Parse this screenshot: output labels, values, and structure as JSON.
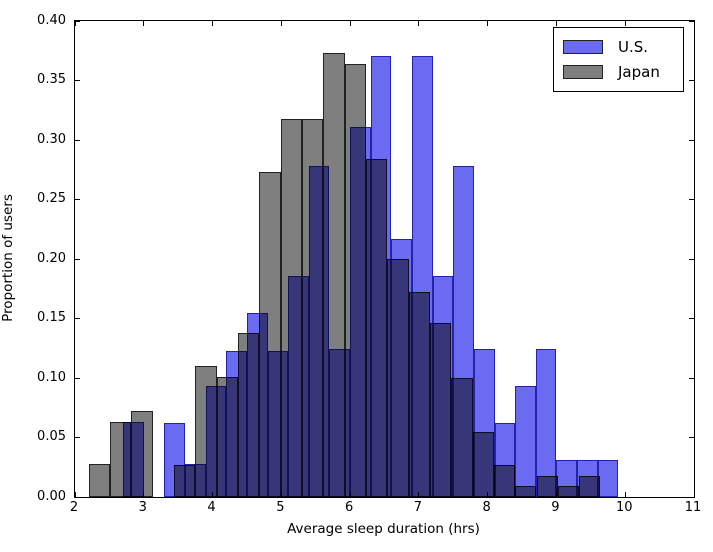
{
  "figure": {
    "background": "#ffffff"
  },
  "chart_data": {
    "type": "histogram-overlay",
    "title": "",
    "xlabel": "Average sleep duration (hrs)",
    "ylabel": "Proportion of users",
    "xlim": [
      2,
      11
    ],
    "ylim": [
      0,
      0.4
    ],
    "xticks": [
      2,
      3,
      4,
      5,
      6,
      7,
      8,
      9,
      10,
      11
    ],
    "xtick_labels": [
      "2",
      "3",
      "4",
      "5",
      "6",
      "7",
      "8",
      "9",
      "10",
      "11"
    ],
    "ytick_labels": [
      "0.00",
      "0.05",
      "0.10",
      "0.15",
      "0.20",
      "0.25",
      "0.30",
      "0.35",
      "0.40"
    ],
    "grid": false,
    "legend_position": "upper right",
    "overlap_color": "#35357a",
    "series": [
      {
        "name": "Japan",
        "color": "#7f7f7f",
        "edge_color": "#222222",
        "bin_start": 2.2,
        "bin_width": 0.31,
        "values": [
          0.028,
          0.063,
          0.072,
          0,
          0.027,
          0.11,
          0.101,
          0.138,
          0.273,
          0.318,
          0.318,
          0.373,
          0.364,
          0.284,
          0.2,
          0.172,
          0.146,
          0.1,
          0.055,
          0.027,
          0.009,
          0.018,
          0.009,
          0.018
        ]
      },
      {
        "name": "U.S.",
        "color": "#6b6bf2",
        "edge_color": "#2222aa",
        "bin_start": 2.7,
        "bin_width": 0.3,
        "values": [
          0.063,
          0,
          0.062,
          0.028,
          0.093,
          0.123,
          0.155,
          0.123,
          0.186,
          0.278,
          0.124,
          0.311,
          0.371,
          0.217,
          0.371,
          0.186,
          0.278,
          0.124,
          0.062,
          0.093,
          0.124,
          0.031,
          0.031,
          0.031
        ]
      }
    ],
    "legend": [
      {
        "label": "U.S.",
        "color": "#6b6bf2"
      },
      {
        "label": "Japan",
        "color": "#7f7f7f"
      }
    ]
  }
}
